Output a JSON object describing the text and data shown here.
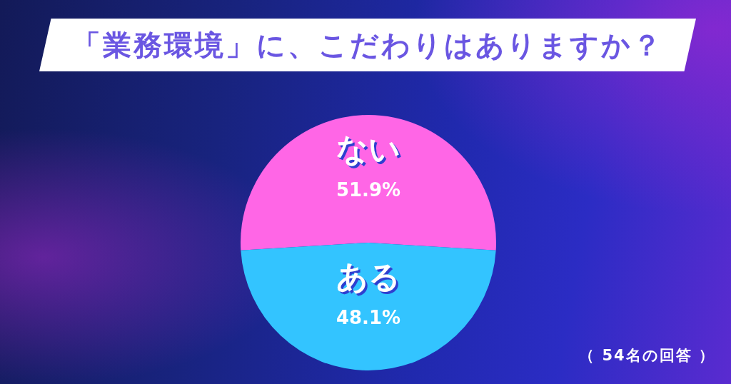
{
  "chart_data": {
    "type": "pie",
    "title": "「業務環境」に、こだわりはありますか？",
    "categories": [
      "ない",
      "ある"
    ],
    "values": [
      51.9,
      48.1
    ],
    "colors": [
      "#ff66e6",
      "#33c4ff"
    ],
    "value_labels": [
      "51.9%",
      "48.1%"
    ],
    "annotations": [
      "（ 54名の回答 ）"
    ]
  }
}
